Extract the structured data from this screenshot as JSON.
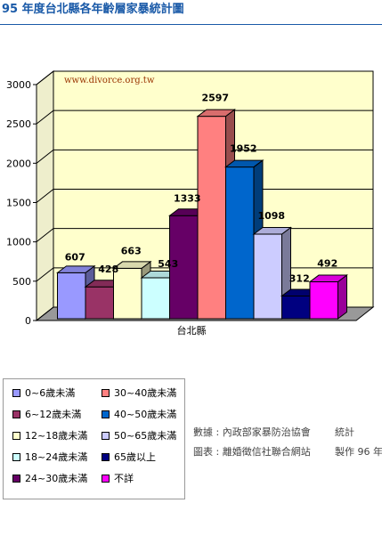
{
  "page": {
    "title": "95 年度台北縣各年齡層家暴統計圖"
  },
  "chart_data": {
    "type": "bar",
    "categories": [
      "台北縣"
    ],
    "watermark": "www.divorce.org.tw",
    "ylim": [
      0,
      3000
    ],
    "yticks": [
      0,
      500,
      1000,
      1500,
      2000,
      2500,
      3000
    ],
    "grid": true,
    "legend_position": "bottom-left",
    "series": [
      {
        "name": "0~6歲未滿",
        "values": [
          607
        ],
        "color": "#9999ff"
      },
      {
        "name": "6~12歲未滿",
        "values": [
          428
        ],
        "color": "#993366"
      },
      {
        "name": "12~18歲未滿",
        "values": [
          663
        ],
        "color": "#ffffcc"
      },
      {
        "name": "18~24歲未滿",
        "values": [
          543
        ],
        "color": "#ccffff"
      },
      {
        "name": "24~30歲未滿",
        "values": [
          1333
        ],
        "color": "#660066"
      },
      {
        "name": "30~40歲未滿",
        "values": [
          2597
        ],
        "color": "#ff8080"
      },
      {
        "name": "40~50歲未滿",
        "values": [
          1952
        ],
        "color": "#0066cc"
      },
      {
        "name": "50~65歲未滿",
        "values": [
          1098
        ],
        "color": "#ccccff"
      },
      {
        "name": "65歲以上",
        "values": [
          312
        ],
        "color": "#000080"
      },
      {
        "name": "不詳",
        "values": [
          492
        ],
        "color": "#ff00ff"
      }
    ],
    "data_label_digits": {
      "6~12歲未滿": "428",
      "18~24歲未滿": "543"
    }
  },
  "source": {
    "data_label": "數據 : 內政部家暴防治協會",
    "data_suffix": "統計",
    "chart_label": "圖表 : 離婚徵信社聯合網站",
    "chart_suffix": "製作 96 年"
  }
}
